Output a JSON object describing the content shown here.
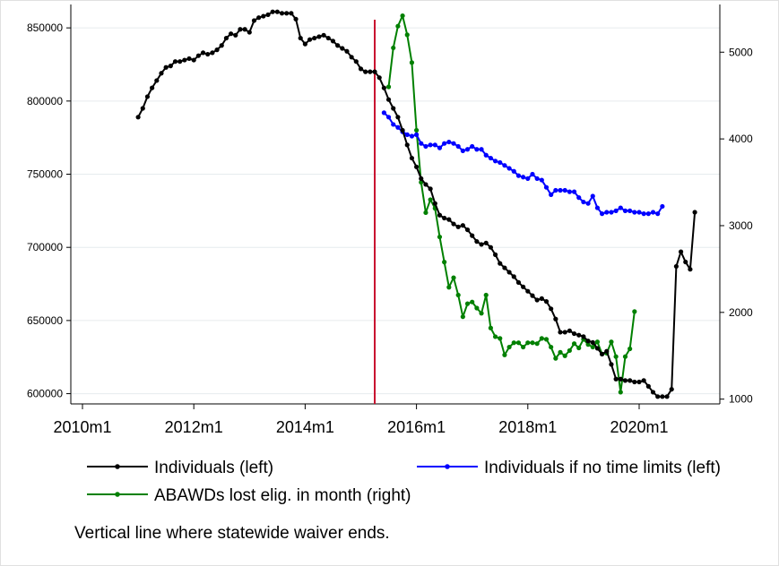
{
  "chart_data": {
    "type": "line",
    "x_start": "2011m1",
    "x_ticks": [
      "2010m1",
      "2012m1",
      "2014m1",
      "2016m1",
      "2018m1",
      "2020m1"
    ],
    "y_left_ticks": [
      "600000",
      "650000",
      "700000",
      "750000",
      "800000",
      "850000"
    ],
    "y_right_ticks": [
      "1000",
      "2000",
      "3000",
      "4000",
      "5000"
    ],
    "y_left_range": [
      593000,
      866000
    ],
    "y_right_range": [
      945,
      5550
    ],
    "vertical_line_at": "2015m4",
    "grid": "horizontal, left axis",
    "note": "Vertical line where statewide waiver ends.",
    "series": [
      {
        "name": "Individuals (left)",
        "axis": "left",
        "color": "#000000",
        "start": "2011m1",
        "values": [
          789000,
          795000,
          803000,
          809000,
          814000,
          819000,
          823000,
          824000,
          827000,
          827000,
          828000,
          829000,
          828000,
          831000,
          833000,
          832000,
          833000,
          835000,
          838000,
          843000,
          846000,
          845000,
          849000,
          849000,
          847000,
          855000,
          857000,
          858000,
          859000,
          861000,
          861000,
          860000,
          860000,
          860000,
          856000,
          843000,
          839000,
          842000,
          843000,
          844000,
          845000,
          843000,
          841000,
          838000,
          836000,
          834000,
          830000,
          827000,
          822000,
          820000,
          820000,
          820000,
          816000,
          809000,
          801000,
          795000,
          789000,
          780000,
          770000,
          761000,
          755000,
          747000,
          743000,
          740000,
          730000,
          722000,
          720000,
          719000,
          716000,
          714000,
          715000,
          712000,
          708000,
          704000,
          702000,
          703000,
          700000,
          695000,
          689000,
          686000,
          683000,
          680000,
          676000,
          673000,
          670000,
          667000,
          664000,
          665000,
          663000,
          658000,
          651000,
          642000,
          642000,
          643000,
          641000,
          640000,
          639000,
          636000,
          635000,
          631000,
          627000,
          629000,
          620000,
          610000,
          610000,
          609000,
          609000,
          608000,
          608000,
          609000,
          605000,
          601000,
          598000,
          598000,
          598000,
          603000,
          687000,
          697000,
          690000,
          685000,
          724000
        ]
      },
      {
        "name": "Individuals if no time limits (left)",
        "axis": "left",
        "color": "#0000ff",
        "start": "2015m6",
        "values": [
          792000,
          789000,
          784000,
          782000,
          779000,
          777000,
          776000,
          777000,
          771000,
          769000,
          770000,
          770000,
          768000,
          771000,
          772000,
          771000,
          769000,
          766000,
          767000,
          769000,
          767000,
          767000,
          763000,
          761000,
          759000,
          758000,
          756000,
          754000,
          752000,
          749000,
          748000,
          747000,
          750000,
          747000,
          746000,
          741000,
          736000,
          739000,
          739000,
          739000,
          738000,
          738000,
          734000,
          731000,
          730000,
          735000,
          727000,
          723000,
          724000,
          724000,
          725000,
          727000,
          725000,
          725000,
          724000,
          724000,
          723000,
          723000,
          724000,
          723000,
          728000
        ]
      },
      {
        "name": "ABAWDs lost elig. in month (right)",
        "axis": "right",
        "color": "#008000",
        "start": "2015m7",
        "values": [
          4600,
          5050,
          5300,
          5420,
          5200,
          4880,
          4100,
          3500,
          3150,
          3300,
          3200,
          2870,
          2580,
          2290,
          2400,
          2200,
          1950,
          2100,
          2120,
          2050,
          1990,
          2200,
          1820,
          1720,
          1700,
          1510,
          1600,
          1650,
          1650,
          1600,
          1650,
          1650,
          1640,
          1700,
          1690,
          1600,
          1470,
          1540,
          1500,
          1560,
          1640,
          1590,
          1690,
          1630,
          1600,
          1660,
          1520,
          1530,
          1660,
          1490,
          1080,
          1490,
          1580,
          2010
        ]
      }
    ],
    "legend": [
      {
        "label": "Individuals (left)",
        "color": "#000000"
      },
      {
        "label": "Individuals if no time limits (left)",
        "color": "#0000ff"
      },
      {
        "label": "ABAWDs lost elig. in month (right)",
        "color": "#008000"
      }
    ],
    "vline_color": "#c8102e"
  }
}
